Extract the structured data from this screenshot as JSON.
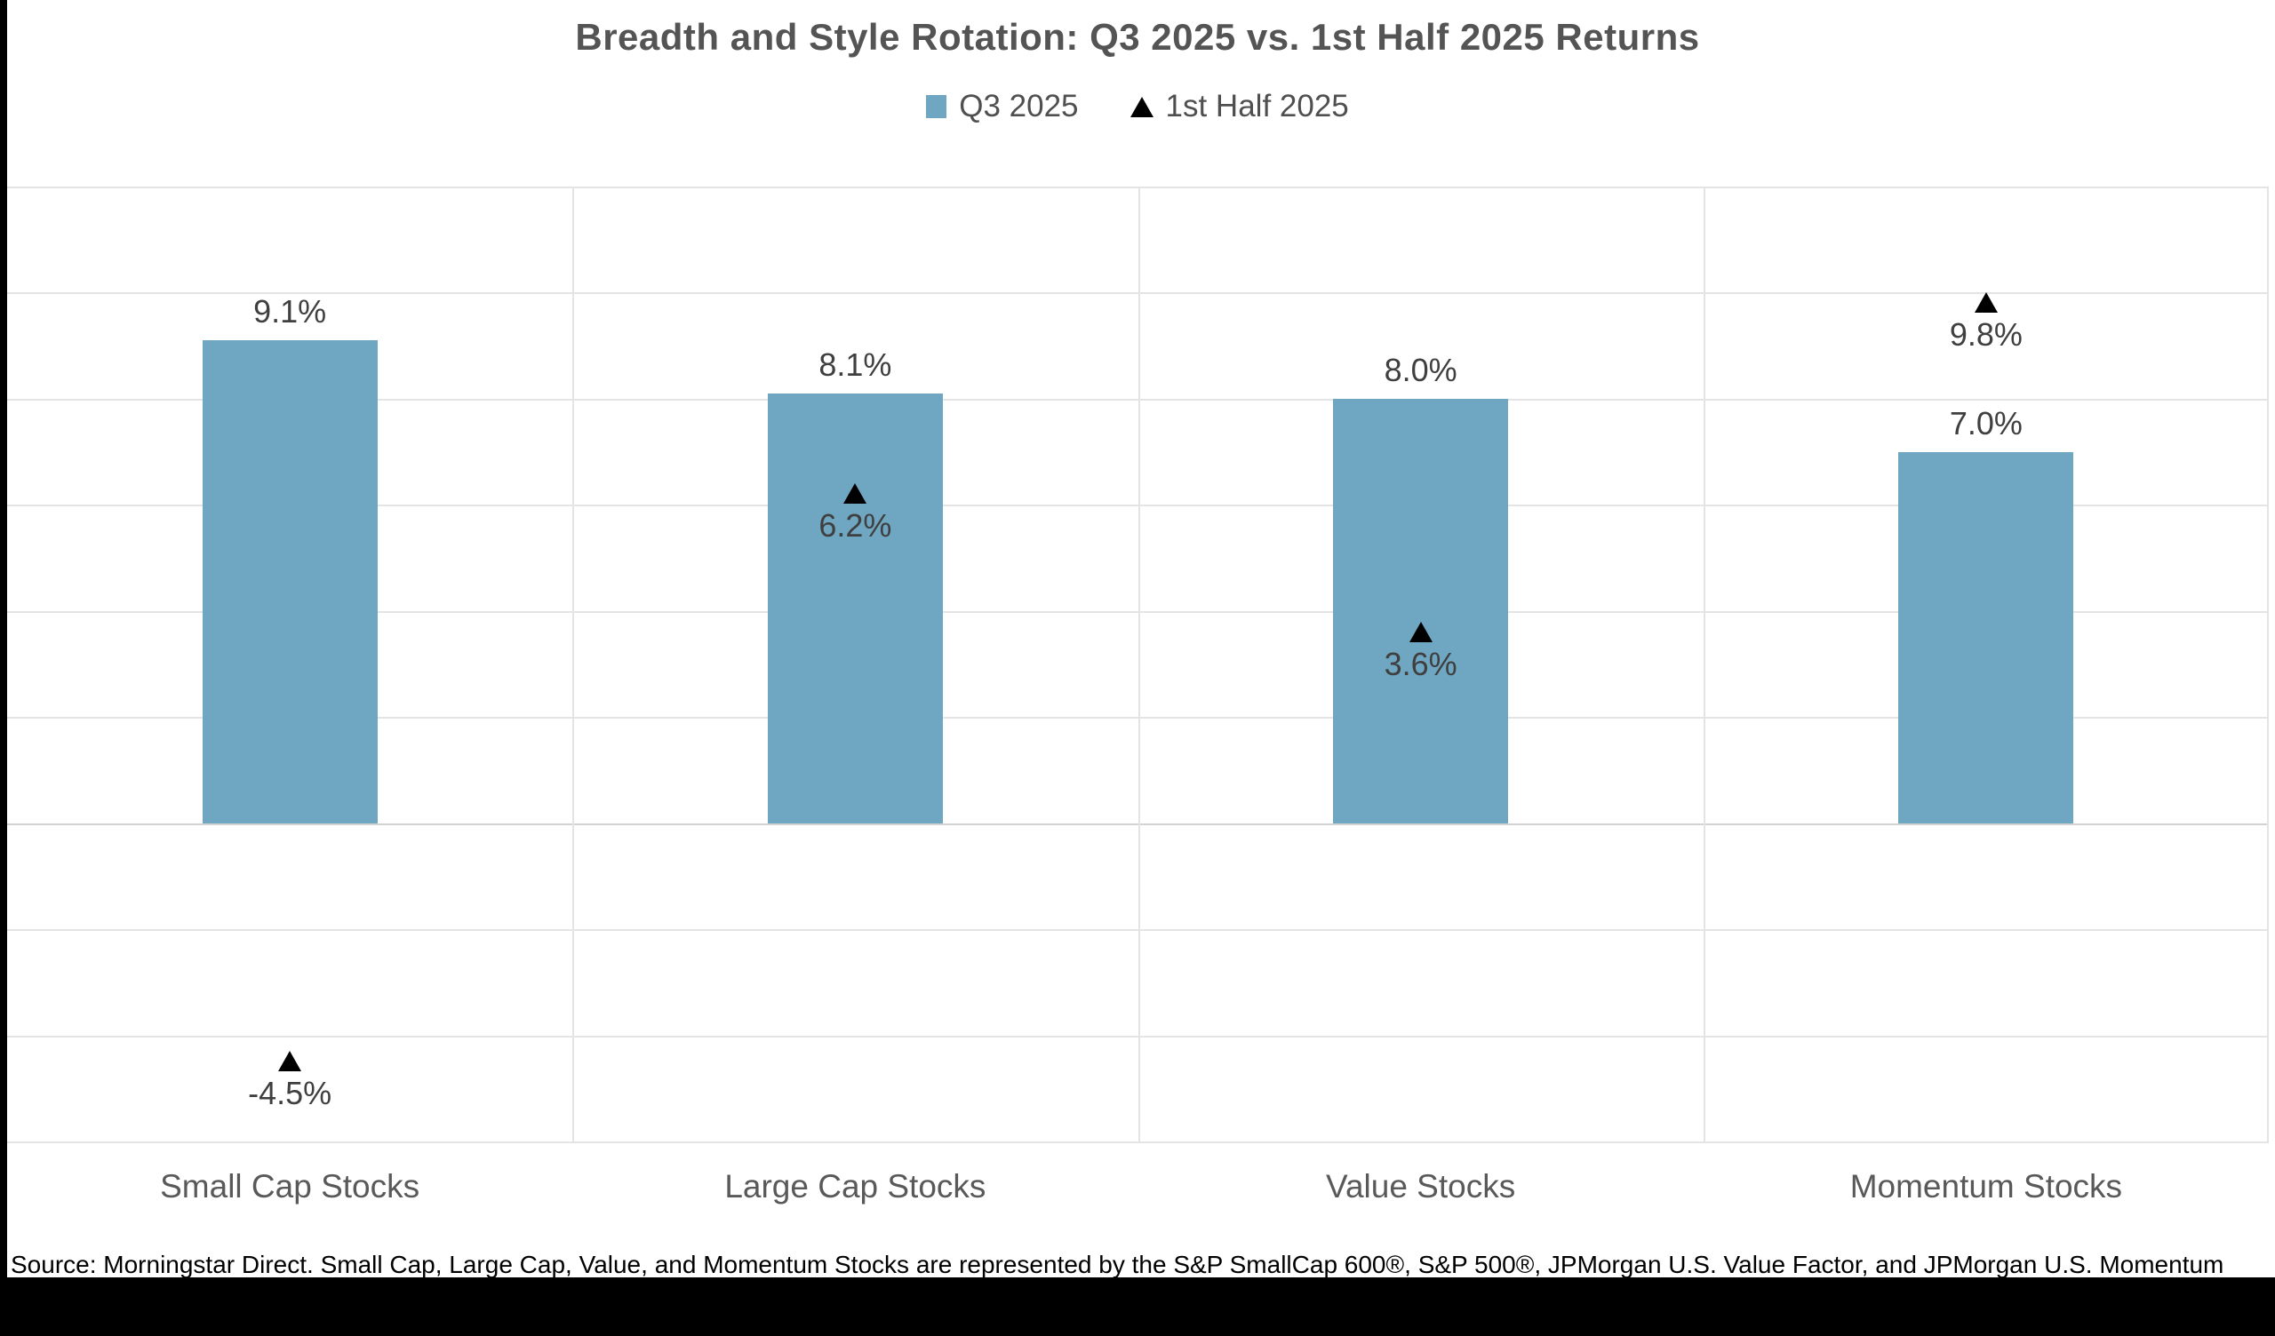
{
  "title": "Breadth and Style Rotation: Q3 2025 vs. 1st Half 2025 Returns",
  "legend": {
    "items": [
      {
        "label": "Q3 2025",
        "marker": "square"
      },
      {
        "label": "1st Half 2025",
        "marker": "triangle"
      }
    ]
  },
  "source_note": "Source: Morningstar Direct. Small Cap, Large Cap, Value, and Momentum Stocks are represented by the S&P SmallCap 600®, S&P 500®, JPMorgan U.S. Value Factor, and JPMorgan U.S. Momentum",
  "colors": {
    "bar_fill": "#6FA6C2",
    "triangle": "#000000",
    "title_text": "#545454",
    "value_label_text": "#3F3F3F",
    "category_text": "#595959",
    "gridline": "#E4E4E4",
    "zero_line": "#D2D2D2",
    "background": "#FFFFFF",
    "redaction_bar": "#000000"
  },
  "chart_data": {
    "type": "bar",
    "title": "Breadth and Style Rotation: Q3 2025 vs. 1st Half 2025 Returns",
    "categories": [
      "Small Cap Stocks",
      "Large Cap Stocks",
      "Value Stocks",
      "Momentum Stocks"
    ],
    "series": [
      {
        "name": "Q3 2025",
        "marker": "bar",
        "color": "#6FA6C2",
        "values": [
          9.1,
          8.1,
          8.0,
          7.0
        ],
        "value_labels": [
          "9.1%",
          "8.1%",
          "8.0%",
          "7.0%"
        ]
      },
      {
        "name": "1st Half 2025",
        "marker": "triangle",
        "color": "#000000",
        "values": [
          -4.5,
          6.2,
          3.6,
          9.8
        ],
        "value_labels": [
          "-4.5%",
          "6.2%",
          "3.6%",
          "9.8%"
        ]
      }
    ],
    "xlabel": "",
    "ylabel": "",
    "ylim": [
      -6,
      12
    ],
    "gridline_step": 2,
    "grid": true,
    "y_axis_tick_labels_visible": false,
    "legend_position": "top"
  }
}
